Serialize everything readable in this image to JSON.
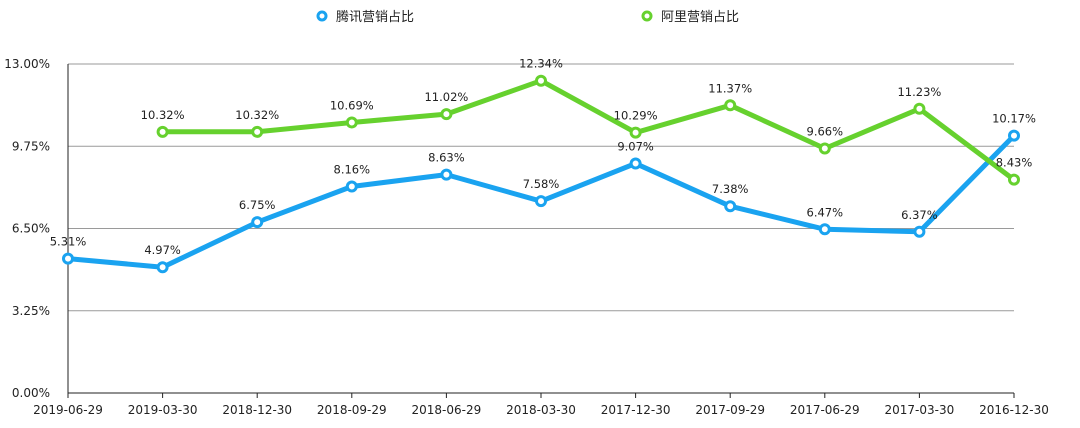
{
  "chart_data": {
    "type": "line",
    "categories": [
      "2019-06-29",
      "2019-03-30",
      "2018-12-30",
      "2018-09-29",
      "2018-06-29",
      "2018-03-30",
      "2017-12-30",
      "2017-09-29",
      "2017-06-29",
      "2017-03-30",
      "2016-12-30"
    ],
    "ylim": [
      0,
      13
    ],
    "yticks": [
      0,
      3.25,
      6.5,
      9.75,
      13
    ],
    "ytick_labels": [
      "0.00%",
      "3.25%",
      "6.50%",
      "9.75%",
      "13.00%"
    ],
    "grid": true,
    "legend_position": "top-center",
    "series": [
      {
        "name": "腾讯营销占比",
        "color": "#1aa3f0",
        "values": [
          5.31,
          4.97,
          6.75,
          8.16,
          8.63,
          7.58,
          9.07,
          7.38,
          6.47,
          6.37,
          10.17
        ],
        "labels": [
          "5.31%",
          "4.97%",
          "6.75%",
          "8.16%",
          "8.63%",
          "7.58%",
          "9.07%",
          "7.38%",
          "6.47%",
          "6.37%",
          "10.17%"
        ]
      },
      {
        "name": "阿里营销占比",
        "color": "#66d12e",
        "values": [
          null,
          10.32,
          10.32,
          10.69,
          11.02,
          12.34,
          10.29,
          11.37,
          9.66,
          11.23,
          8.43
        ],
        "labels": [
          null,
          "10.32%",
          "10.32%",
          "10.69%",
          "11.02%",
          "12.34%",
          "10.29%",
          "11.37%",
          "9.66%",
          "11.23%",
          "8.43%"
        ]
      }
    ]
  }
}
